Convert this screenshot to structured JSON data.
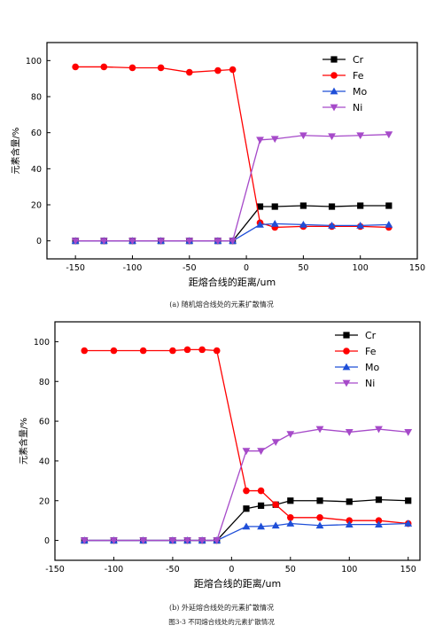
{
  "chart_data": [
    {
      "type": "line",
      "caption": "(a) 随机熔合线处的元素扩散情况",
      "xlabel": "距熔合线的距离/um",
      "ylabel": "元素含量/%",
      "xlim": [
        -175,
        150
      ],
      "ylim": [
        -10,
        110
      ],
      "xticks": [
        -150,
        -100,
        -50,
        0,
        50,
        100,
        150
      ],
      "yticks": [
        0,
        20,
        40,
        60,
        80,
        100
      ],
      "legend_position": "top-right",
      "grid": false,
      "x": [
        -150,
        -125,
        -100,
        -75,
        -50,
        -25,
        -12,
        12,
        25,
        50,
        75,
        100,
        125
      ],
      "series": [
        {
          "name": "Cr",
          "color": "#000000",
          "marker": "square",
          "values": [
            0,
            0,
            0,
            0,
            0,
            0,
            0,
            19,
            19,
            19.5,
            19,
            19.5,
            19.5
          ]
        },
        {
          "name": "Fe",
          "color": "#ff0000",
          "marker": "circle",
          "values": [
            96.5,
            96.5,
            96,
            96,
            93.5,
            94.5,
            95,
            10,
            7.5,
            8,
            8,
            8,
            7.5
          ]
        },
        {
          "name": "Mo",
          "color": "#1f4fd8",
          "marker": "triangle-up",
          "values": [
            0,
            0,
            0,
            0,
            0,
            0,
            0,
            9,
            9.5,
            9,
            8.5,
            8.5,
            9
          ]
        },
        {
          "name": "Ni",
          "color": "#a64ac9",
          "marker": "triangle-down",
          "values": [
            0,
            0,
            0,
            0,
            0,
            0,
            0,
            56,
            56.5,
            58.5,
            58,
            58.5,
            59
          ]
        }
      ]
    },
    {
      "type": "line",
      "caption": "(b) 外延熔合线处的元素扩散情况",
      "xlabel": "距熔合线的距离/um",
      "ylabel": "元素含量/%",
      "xlim": [
        -150,
        160
      ],
      "ylim": [
        -10,
        110
      ],
      "xticks": [
        -150,
        -100,
        -50,
        0,
        50,
        100,
        150
      ],
      "yticks": [
        0,
        20,
        40,
        60,
        80,
        100
      ],
      "legend_position": "top-right",
      "grid": false,
      "x": [
        -125,
        -100,
        -75,
        -50,
        -37.5,
        -25,
        -12.5,
        12.5,
        25,
        37.5,
        50,
        75,
        100,
        125,
        150
      ],
      "series": [
        {
          "name": "Cr",
          "color": "#000000",
          "marker": "square",
          "values": [
            0,
            0,
            0,
            0,
            0,
            0,
            0,
            16,
            17.5,
            18,
            20,
            20,
            19.5,
            20.5,
            20
          ]
        },
        {
          "name": "Fe",
          "color": "#ff0000",
          "marker": "circle",
          "values": [
            95.5,
            95.5,
            95.5,
            95.5,
            96,
            96,
            95.5,
            25,
            25,
            18,
            11.5,
            11.5,
            10,
            10,
            8.5
          ]
        },
        {
          "name": "Mo",
          "color": "#1f4fd8",
          "marker": "triangle-up",
          "values": [
            0,
            0,
            0,
            0,
            0,
            0,
            0,
            7,
            7,
            7.5,
            8.5,
            7.5,
            8,
            8,
            8.5
          ]
        },
        {
          "name": "Ni",
          "color": "#a64ac9",
          "marker": "triangle-down",
          "values": [
            0,
            0,
            0,
            0,
            0,
            0,
            0,
            45,
            45,
            49.5,
            53.5,
            56,
            54.5,
            56,
            54.5
          ]
        }
      ]
    }
  ],
  "figure_caption": "图3-3 不同熔合线处的元素扩散情况"
}
